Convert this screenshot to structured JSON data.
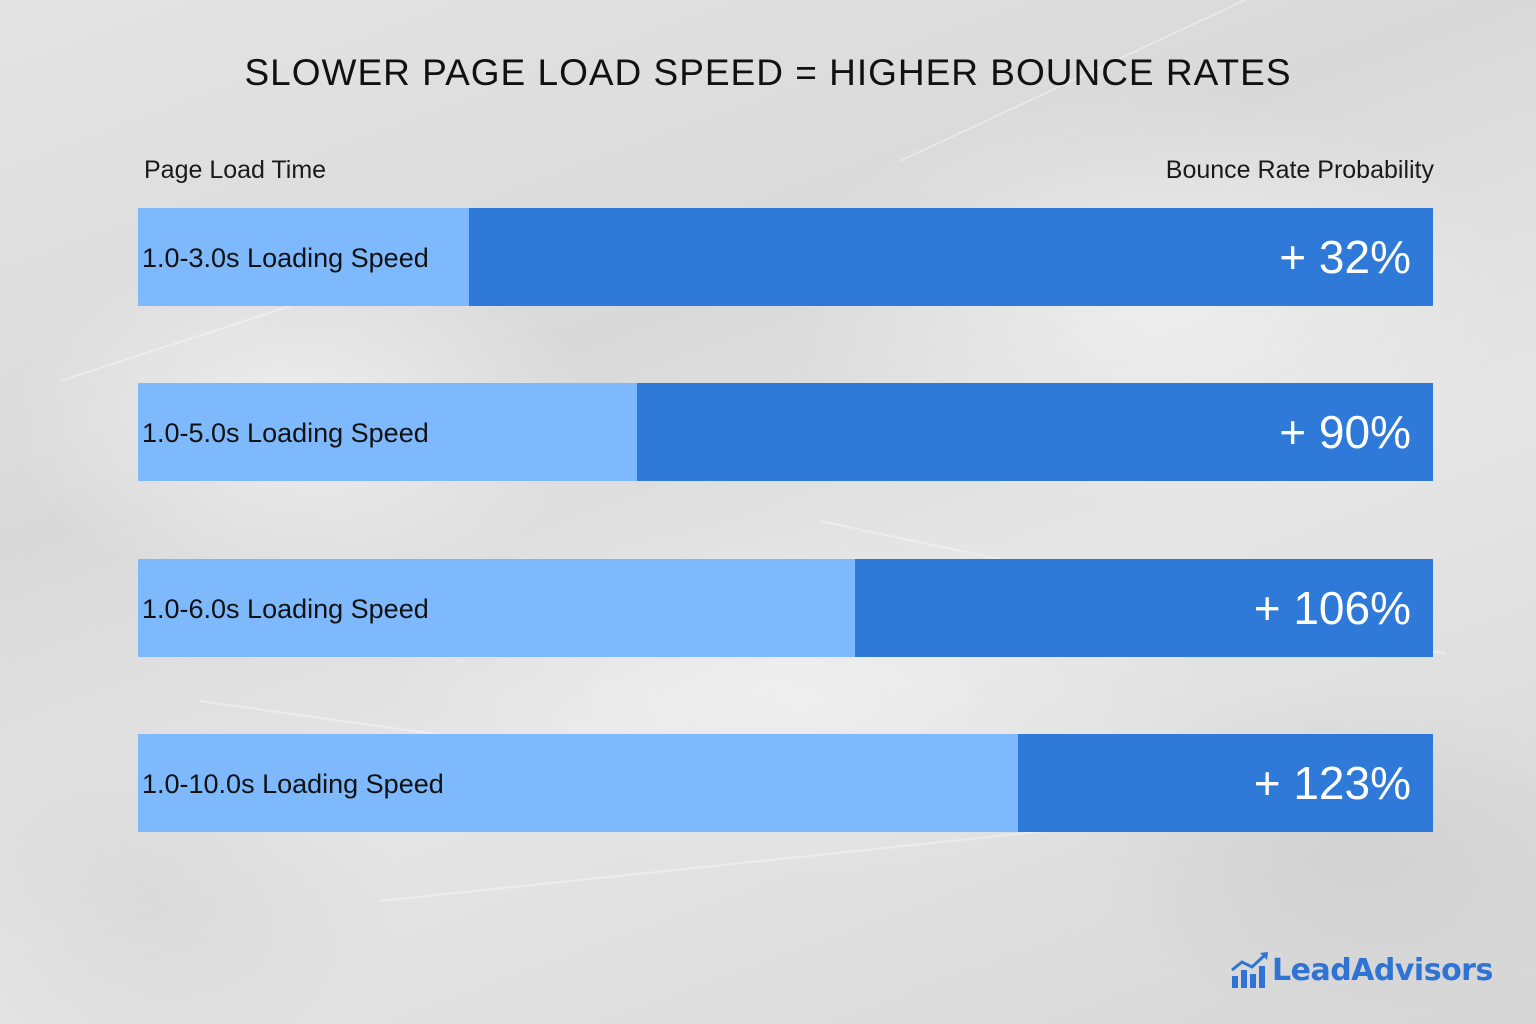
{
  "chart_data": {
    "type": "bar",
    "title": "SLOWER PAGE LOAD SPEED = HIGHER BOUNCE RATES",
    "left_header": "Page Load Time",
    "right_header": "Bounce Rate Probability",
    "categories": [
      "1.0-3.0s Loading Speed",
      "1.0-5.0s Loading Speed",
      "1.0-6.0s Loading Speed",
      "1.0-10.0s Loading Speed"
    ],
    "values": [
      32,
      90,
      106,
      123
    ],
    "value_labels": [
      "+ 32%",
      "+ 90%",
      "+ 106%",
      "+ 123%"
    ],
    "unit": "%",
    "colors": {
      "track": "#7eb8fd",
      "fill": "#2f7ad9"
    },
    "grid": false,
    "legend": "none"
  },
  "brand": {
    "logo_text": "LeadAdvisors",
    "logo_icon": "bar-growth-icon",
    "color": "#2f74d4"
  }
}
